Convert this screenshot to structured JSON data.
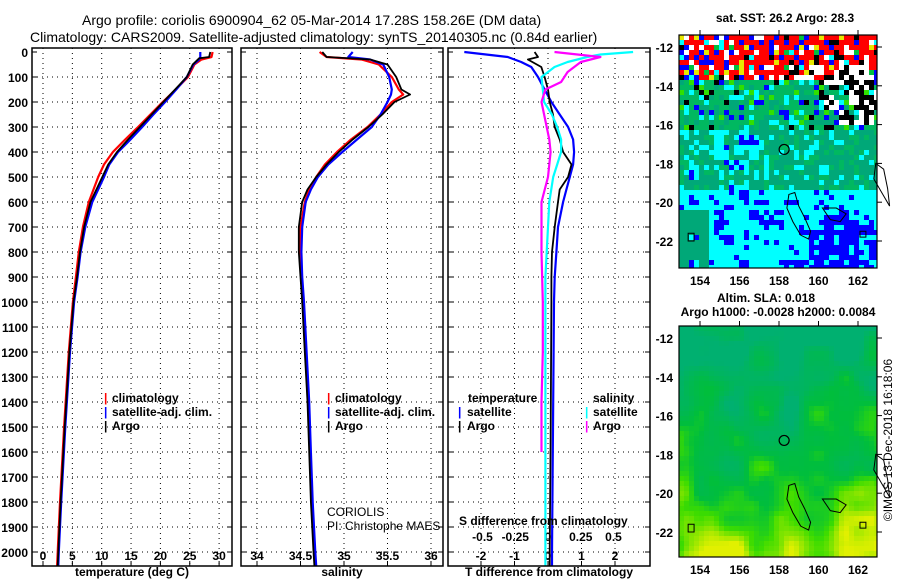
{
  "title": {
    "line1": "Argo profile: coriolis 6900904_62 05-Mar-2014 17.28S 158.26E (DM data)",
    "line2": "Climatology: CARS2009. Satellite-adjusted climatology: synTS_20140305.nc (0.84d earlier)"
  },
  "colors": {
    "climatology": "#ff0000",
    "satellite": "#0000ff",
    "argo": "#000000",
    "sal_satellite": "#00ffff",
    "sal_argo": "#ff00ff"
  },
  "chart_data": [
    {
      "type": "line",
      "name": "temperature",
      "xlabel": "temperature (deg C)",
      "xlim": [
        -1.9,
        32.2
      ],
      "xticks": [
        "0",
        "5",
        "10",
        "15",
        "20",
        "25",
        "30"
      ],
      "ylim": [
        2055,
        -15
      ],
      "yticks": [
        "0",
        "100",
        "200",
        "300",
        "400",
        "500",
        "600",
        "700",
        "800",
        "900",
        "1000",
        "1100",
        "1200",
        "1300",
        "1400",
        "1500",
        "1600",
        "1700",
        "1800",
        "1900",
        "2000"
      ],
      "legend": [
        "climatology",
        "satellite-adj. clim.",
        "Argo"
      ],
      "series": [
        {
          "name": "climatology",
          "color": "climatology",
          "depth": [
            0,
            20,
            30,
            50,
            100,
            150,
            200,
            250,
            300,
            350,
            400,
            450,
            500,
            600,
            700,
            800,
            900,
            1000,
            1200,
            1500,
            1800,
            2000,
            2055
          ],
          "values": [
            28.9,
            28.7,
            27.0,
            25.8,
            24.7,
            22.6,
            20.4,
            18.3,
            16.2,
            14.0,
            11.9,
            10.4,
            9.4,
            7.8,
            6.8,
            6.1,
            5.6,
            5.1,
            4.4,
            3.6,
            2.9,
            2.5,
            2.4
          ]
        },
        {
          "name": "satellite-adj. clim.",
          "color": "satellite",
          "depth": [
            0,
            20,
            30,
            50,
            100,
            150,
            200,
            250,
            300,
            350,
            400,
            450,
            500,
            600,
            700,
            800,
            900,
            1000,
            1200,
            1500,
            1800,
            2000,
            2055
          ],
          "values": [
            26.8,
            26.8,
            26.6,
            25.6,
            24.5,
            22.7,
            20.8,
            18.8,
            16.9,
            14.9,
            12.8,
            11.3,
            10.4,
            8.4,
            7.2,
            6.4,
            5.9,
            5.3,
            4.6,
            3.8,
            3.1,
            2.7,
            2.6
          ]
        },
        {
          "name": "Argo",
          "color": "argo",
          "depth": [
            0,
            20,
            25,
            50,
            100,
            150,
            200,
            250,
            300,
            350,
            400,
            450,
            500,
            600,
            700,
            800,
            900,
            1000,
            1200,
            1500,
            1800,
            2000,
            2055
          ],
          "values": [
            28.5,
            28.3,
            26.6,
            25.5,
            24.5,
            22.5,
            20.5,
            18.5,
            16.5,
            14.5,
            12.6,
            11.1,
            10.1,
            8.1,
            7.0,
            6.3,
            5.8,
            5.2,
            4.5,
            3.7,
            3.0,
            2.6,
            2.5
          ]
        }
      ]
    },
    {
      "type": "line",
      "name": "salinity",
      "xlabel": "salinity",
      "xlim": [
        33.82,
        36.14
      ],
      "xticks": [
        "34",
        "34.5",
        "35",
        "35.5",
        "36"
      ],
      "ylim": [
        2055,
        -15
      ],
      "legend": [
        "climatology",
        "satellite-adj. clim.",
        "Argo"
      ],
      "annotation": [
        "CORIOLIS",
        "PI: Christophe MAES"
      ],
      "series": [
        {
          "name": "climatology",
          "color": "climatology",
          "depth": [
            0,
            20,
            30,
            50,
            100,
            150,
            170,
            200,
            250,
            300,
            350,
            400,
            450,
            500,
            550,
            600,
            700,
            800,
            900,
            1000,
            1200,
            1400,
            1600,
            1800,
            2000,
            2055
          ],
          "values": [
            34.72,
            34.8,
            35.2,
            35.4,
            35.55,
            35.63,
            35.68,
            35.55,
            35.42,
            35.27,
            35.08,
            34.92,
            34.78,
            34.68,
            34.6,
            34.55,
            34.5,
            34.5,
            34.51,
            34.53,
            34.56,
            34.59,
            34.61,
            34.63,
            34.66,
            34.67
          ]
        },
        {
          "name": "satellite-adj. clim.",
          "color": "satellite",
          "depth": [
            0,
            20,
            30,
            50,
            100,
            150,
            170,
            200,
            250,
            300,
            350,
            400,
            450,
            500,
            550,
            600,
            700,
            800,
            900,
            1000,
            1200,
            1400,
            1600,
            1800,
            2000,
            2055
          ],
          "values": [
            35.1,
            35.05,
            35.3,
            35.45,
            35.52,
            35.55,
            35.54,
            35.5,
            35.42,
            35.32,
            35.15,
            34.98,
            34.82,
            34.7,
            34.62,
            34.56,
            34.52,
            34.51,
            34.52,
            34.54,
            34.57,
            34.6,
            34.62,
            34.64,
            34.67,
            34.68
          ]
        },
        {
          "name": "Argo",
          "color": "argo",
          "depth": [
            0,
            20,
            30,
            50,
            100,
            150,
            170,
            200,
            250,
            300,
            350,
            400,
            450,
            500,
            550,
            600,
            700,
            800,
            900,
            1000,
            1200,
            1400,
            1600,
            1800,
            2000,
            2055
          ],
          "values": [
            34.75,
            34.8,
            35.3,
            35.5,
            35.6,
            35.66,
            35.76,
            35.58,
            35.44,
            35.28,
            35.1,
            34.94,
            34.8,
            34.68,
            34.58,
            34.52,
            34.48,
            34.48,
            34.5,
            34.52,
            34.55,
            34.58,
            34.6,
            34.62,
            34.65,
            34.66
          ]
        }
      ]
    },
    {
      "type": "line",
      "name": "difference",
      "xlabel": "T difference from climatology",
      "xlim": [
        -3.0,
        3.0
      ],
      "xticks": [
        "-2",
        "-1",
        "0",
        "1",
        "2"
      ],
      "s_label": "S difference from climatology",
      "s_ticks": [
        "-0.5",
        "-0.25",
        "0",
        "0.25",
        "0.5"
      ],
      "ylim": [
        2055,
        -15
      ],
      "legend": {
        "temperature": "temperature",
        "salinity": "salinity",
        "satellite": "satellite",
        "argo": "Argo"
      },
      "series": [
        {
          "name": "T satellite",
          "color": "satellite",
          "kind": "T",
          "depth": [
            0,
            20,
            40,
            60,
            100,
            150,
            200,
            250,
            300,
            350,
            400,
            450,
            500,
            550,
            600,
            700,
            800,
            900,
            1000,
            1500,
            2000,
            2055
          ],
          "values": [
            -2.5,
            -1.2,
            -0.8,
            -0.5,
            -0.3,
            -0.1,
            0.1,
            0.35,
            0.6,
            0.75,
            0.78,
            0.75,
            0.65,
            0.55,
            0.45,
            0.3,
            0.25,
            0.2,
            0.18,
            0.15,
            0.12,
            0.12
          ]
        },
        {
          "name": "T Argo",
          "color": "argo",
          "kind": "T",
          "depth": [
            0,
            20,
            30,
            60,
            100,
            150,
            200,
            250,
            300,
            350,
            400,
            450,
            500,
            550,
            600,
            700,
            800,
            900,
            1000,
            1500,
            2000,
            2055
          ],
          "values": [
            -0.4,
            -0.3,
            -0.6,
            -0.2,
            -0.1,
            0.0,
            0.05,
            0.15,
            0.2,
            0.35,
            0.45,
            0.7,
            0.6,
            0.35,
            0.3,
            0.2,
            0.12,
            0.1,
            0.1,
            0.08,
            0.05,
            0.05
          ]
        },
        {
          "name": "S satellite",
          "color": "sal_satellite",
          "kind": "S",
          "depth": [
            0,
            10,
            20,
            40,
            60,
            100,
            150,
            200,
            250,
            300,
            350,
            400,
            450,
            500,
            600,
            700,
            800,
            900,
            1200,
            1600,
            2000,
            2055
          ],
          "values": [
            0.65,
            0.4,
            0.3,
            0.15,
            0.05,
            -0.05,
            -0.04,
            -0.03,
            0.03,
            0.07,
            0.1,
            0.1,
            0.07,
            0.04,
            0.01,
            0.0,
            -0.01,
            -0.02,
            -0.02,
            -0.02,
            -0.02,
            -0.02
          ]
        },
        {
          "name": "S Argo",
          "color": "sal_argo",
          "kind": "S",
          "depth": [
            0,
            20,
            40,
            80,
            120,
            150,
            200,
            250,
            300,
            350,
            400,
            450,
            500,
            600,
            700,
            800,
            1000,
            1200,
            1400,
            1600
          ],
          "values": [
            0.05,
            0.4,
            0.25,
            0.15,
            0.1,
            -0.02,
            -0.05,
            -0.03,
            -0.01,
            0.01,
            0.02,
            0.01,
            0.0,
            -0.05,
            -0.05,
            -0.05,
            -0.04,
            -0.04,
            -0.05,
            -0.05
          ]
        }
      ]
    }
  ],
  "maps": {
    "sst": {
      "title": "sat. SST: 26.2 Argo: 28.3"
    },
    "sla": {
      "title1": "Altim. SLA: 0.018",
      "title2": "Argo h1000: -0.0028 h2000: 0.0084"
    },
    "lat_ticks": [
      "-12",
      "-14",
      "-16",
      "-18",
      "-20",
      "-22"
    ],
    "lon_ticks": [
      "154",
      "156",
      "158",
      "160",
      "162"
    ],
    "argo_position": {
      "lon": 158.26,
      "lat": -17.28
    }
  },
  "credit": "©IMOS 13-Dec-2018 16:18:06"
}
